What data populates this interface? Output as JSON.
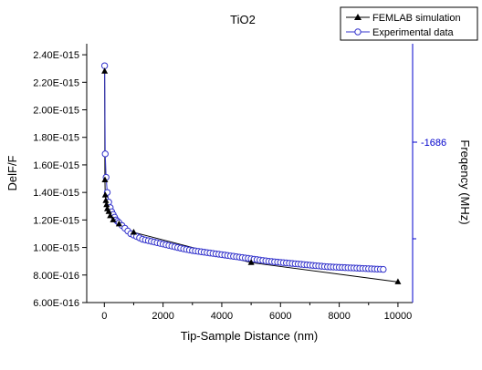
{
  "chart_data": {
    "type": "scatter",
    "title": "TiO2",
    "xlabel": "Tip-Sample Distance (nm)",
    "ylabel": "DelF/F",
    "y2label": "Freqency (MHz)",
    "xlim": [
      -600,
      10500
    ],
    "ylim": [
      6e-16,
      2.48e-15
    ],
    "x_ticks": [
      0,
      2000,
      4000,
      6000,
      8000,
      10000
    ],
    "x_tick_labels": [
      "0",
      "2000",
      "4000",
      "6000",
      "8000",
      "10000"
    ],
    "y_ticks": [
      6e-16,
      8e-16,
      1e-15,
      1.2e-15,
      1.4e-15,
      1.6e-15,
      1.8e-15,
      2e-15,
      2.2e-15,
      2.4e-15
    ],
    "y_tick_labels": [
      "6.00E-016",
      "8.00E-016",
      "1.00E-015",
      "1.20E-015",
      "1.40E-015",
      "1.60E-015",
      "1.80E-015",
      "2.00E-015",
      "2.20E-015",
      "2.40E-015"
    ],
    "y2_tick_label": "-1686",
    "grid": false,
    "legend_position": "top-right",
    "colors": {
      "femlab": "#000000",
      "experimental": "#3333cc",
      "right_axis": "#0000cc"
    },
    "series": [
      {
        "name": "FEMLAB simulation",
        "marker": "filled-triangle",
        "x": [
          10,
          20,
          30,
          50,
          75,
          100,
          150,
          200,
          300,
          500,
          1000,
          5000,
          10000
        ],
        "y": [
          2.28e-15,
          1.49e-15,
          1.38e-15,
          1.34e-15,
          1.31e-15,
          1.28e-15,
          1.26e-15,
          1.23e-15,
          1.2e-15,
          1.17e-15,
          1.11e-15,
          8.9e-16,
          7.5e-16
        ]
      },
      {
        "name": "Experimental data",
        "marker": "open-circle",
        "x": [
          10,
          30,
          60,
          100,
          150,
          200,
          250,
          300,
          350,
          400,
          450,
          500,
          600,
          700,
          800,
          900,
          1000,
          1100,
          1200,
          1300,
          1400,
          1500,
          1600,
          1700,
          1800,
          1900,
          2000,
          2100,
          2200,
          2300,
          2400,
          2500,
          2600,
          2700,
          2800,
          2900,
          3000,
          3100,
          3200,
          3300,
          3400,
          3500,
          3600,
          3700,
          3800,
          3900,
          4000,
          4100,
          4200,
          4300,
          4400,
          4500,
          4600,
          4700,
          4800,
          4900,
          5000,
          5100,
          5200,
          5300,
          5400,
          5500,
          5600,
          5700,
          5800,
          5900,
          6000,
          6100,
          6200,
          6300,
          6400,
          6500,
          6600,
          6700,
          6800,
          6900,
          7000,
          7100,
          7200,
          7300,
          7400,
          7500,
          7600,
          7700,
          7800,
          7900,
          8000,
          8100,
          8200,
          8300,
          8400,
          8500,
          8600,
          8700,
          8800,
          8900,
          9000,
          9100,
          9200,
          9300,
          9400,
          9500
        ],
        "y": [
          2.32e-15,
          1.68e-15,
          1.51e-15,
          1.4e-15,
          1.33e-15,
          1.29e-15,
          1.26e-15,
          1.24e-15,
          1.22e-15,
          1.2e-15,
          1.19e-15,
          1.18e-15,
          1.16e-15,
          1.14e-15,
          1.12e-15,
          1.1e-15,
          1.09e-15,
          1.08e-15,
          1.07e-15,
          1.06e-15,
          1.055e-15,
          1.05e-15,
          1.045e-15,
          1.04e-15,
          1.035e-15,
          1.03e-15,
          1.025e-15,
          1.02e-15,
          1.015e-15,
          1.01e-15,
          1.005e-15,
          1e-15,
          9.95e-16,
          9.9e-16,
          9.86e-16,
          9.82e-16,
          9.78e-16,
          9.75e-16,
          9.72e-16,
          9.69e-16,
          9.66e-16,
          9.63e-16,
          9.6e-16,
          9.57e-16,
          9.54e-16,
          9.51e-16,
          9.48e-16,
          9.45e-16,
          9.42e-16,
          9.39e-16,
          9.36e-16,
          9.33e-16,
          9.3e-16,
          9.27e-16,
          9.24e-16,
          9.21e-16,
          9.18e-16,
          9.15e-16,
          9.12e-16,
          9.09e-16,
          9.06e-16,
          9.03e-16,
          9e-16,
          8.98e-16,
          8.96e-16,
          8.94e-16,
          8.92e-16,
          8.9e-16,
          8.88e-16,
          8.86e-16,
          8.84e-16,
          8.82e-16,
          8.8e-16,
          8.78e-16,
          8.76e-16,
          8.74e-16,
          8.72e-16,
          8.7e-16,
          8.68e-16,
          8.66e-16,
          8.64e-16,
          8.62e-16,
          8.6e-16,
          8.59e-16,
          8.58e-16,
          8.57e-16,
          8.56e-16,
          8.55e-16,
          8.54e-16,
          8.53e-16,
          8.52e-16,
          8.51e-16,
          8.5e-16,
          8.49e-16,
          8.48e-16,
          8.47e-16,
          8.46e-16,
          8.45e-16,
          8.44e-16,
          8.43e-16,
          8.42e-16,
          8.41e-16
        ]
      }
    ]
  }
}
